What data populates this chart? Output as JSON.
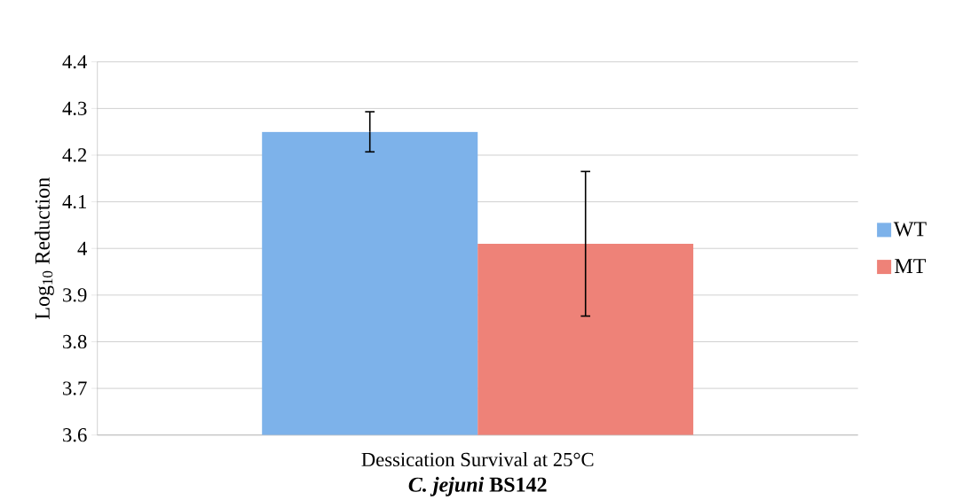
{
  "chart_data": {
    "type": "bar",
    "categories": [
      "Dessication Survival at 25°C"
    ],
    "xlabel": "*C. jejuni* BS142",
    "ylabel": "Log$_{10}$ Reduction",
    "series": [
      {
        "name": "WT",
        "color": "#7db2ea",
        "values": [
          4.25
        ],
        "errors": [
          0.043
        ]
      },
      {
        "name": "MT",
        "color": "#ee8278",
        "values": [
          4.01
        ],
        "errors": [
          0.155
        ]
      }
    ],
    "ylim": [
      3.6,
      4.4
    ],
    "yticks": [
      3.6,
      3.7,
      3.8,
      3.9,
      4,
      4.1,
      4.2,
      4.3,
      4.4
    ],
    "grid": "y",
    "legend": "right"
  }
}
